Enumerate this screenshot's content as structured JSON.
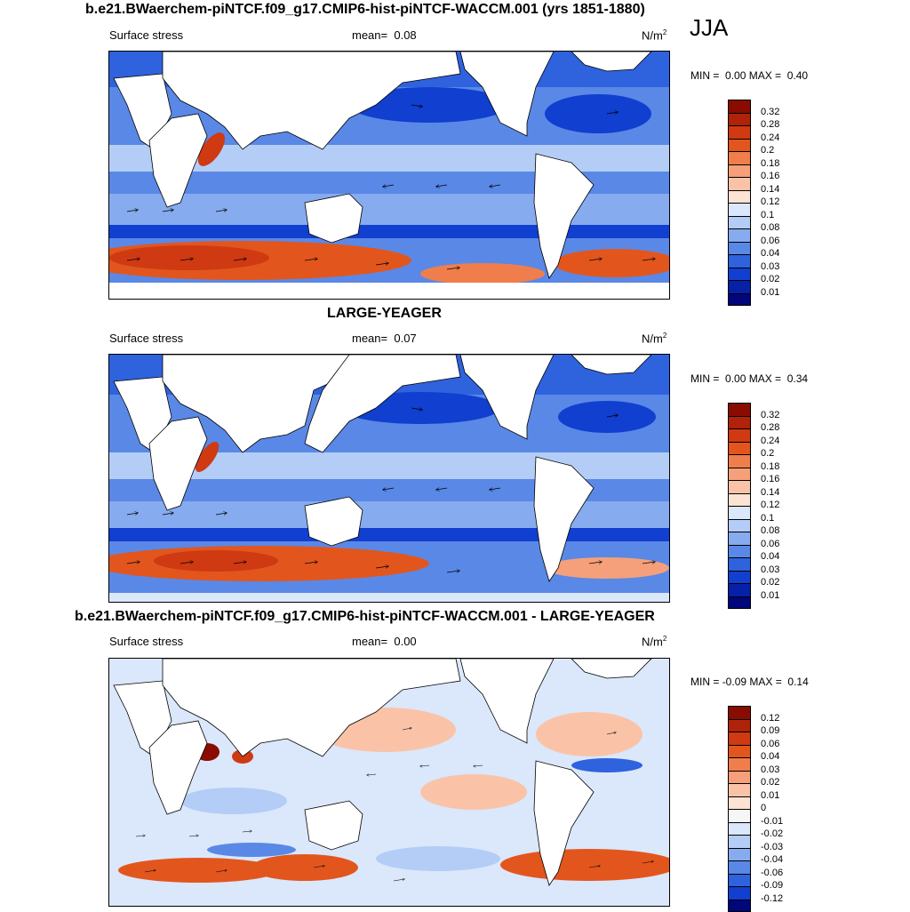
{
  "season": "JJA",
  "panels": [
    {
      "title": "b.e21.BWaerchem-piNTCF.f09_g17.CMIP6-hist-piNTCF-WACCM.001 (yrs 1851-1880)",
      "variable": "Surface stress",
      "mean_label": "mean=",
      "mean_value": "0.08",
      "units": "N/m",
      "units_exp": "2",
      "min_label": "MIN =",
      "min_value": "0.00",
      "max_label": "MAX =",
      "max_value": "0.40",
      "colorbar": {
        "levels": [
          "0.32",
          "0.28",
          "0.24",
          "0.2",
          "0.18",
          "0.16",
          "0.14",
          "0.12",
          "0.1",
          "0.08",
          "0.06",
          "0.04",
          "0.03",
          "0.02",
          "0.01"
        ],
        "colors": [
          "#8a0b00",
          "#b0220a",
          "#cf3a12",
          "#e2561e",
          "#f07e4c",
          "#f5a07a",
          "#fac3a8",
          "#fde3d3",
          "#dbe7fb",
          "#b4cdf6",
          "#86abef",
          "#5a88e6",
          "#2f62dd",
          "#113fcf",
          "#0620a8",
          "#01067a"
        ]
      }
    },
    {
      "title": "LARGE-YEAGER",
      "variable": "Surface stress",
      "mean_label": "mean=",
      "mean_value": "0.07",
      "units": "N/m",
      "units_exp": "2",
      "min_label": "MIN =",
      "min_value": "0.00",
      "max_label": "MAX =",
      "max_value": "0.34",
      "colorbar": {
        "levels": [
          "0.32",
          "0.28",
          "0.24",
          "0.2",
          "0.18",
          "0.16",
          "0.14",
          "0.12",
          "0.1",
          "0.08",
          "0.06",
          "0.04",
          "0.03",
          "0.02",
          "0.01"
        ],
        "colors": [
          "#8a0b00",
          "#b0220a",
          "#cf3a12",
          "#e2561e",
          "#f07e4c",
          "#f5a07a",
          "#fac3a8",
          "#fde3d3",
          "#dbe7fb",
          "#b4cdf6",
          "#86abef",
          "#5a88e6",
          "#2f62dd",
          "#113fcf",
          "#0620a8",
          "#01067a"
        ]
      }
    },
    {
      "title": "b.e21.BWaerchem-piNTCF.f09_g17.CMIP6-hist-piNTCF-WACCM.001 - LARGE-YEAGER",
      "variable": "Surface stress",
      "mean_label": "mean=",
      "mean_value": "0.00",
      "units": "N/m",
      "units_exp": "2",
      "min_label": "MIN =",
      "min_value": "-0.09",
      "max_label": "MAX =",
      "max_value": "0.14",
      "colorbar": {
        "levels": [
          "0.12",
          "0.09",
          "0.06",
          "0.04",
          "0.03",
          "0.02",
          "0.01",
          "0",
          "-0.01",
          "-0.02",
          "-0.03",
          "-0.04",
          "-0.06",
          "-0.09",
          "-0.12"
        ],
        "colors": [
          "#8a0b00",
          "#b0220a",
          "#cf3a12",
          "#e2561e",
          "#f07e4c",
          "#f5a07a",
          "#fac3a8",
          "#fde3d3",
          "#f6f6f6",
          "#dbe7fb",
          "#b4cdf6",
          "#86abef",
          "#5a88e6",
          "#2f62dd",
          "#113fcf",
          "#01067a"
        ]
      }
    }
  ]
}
